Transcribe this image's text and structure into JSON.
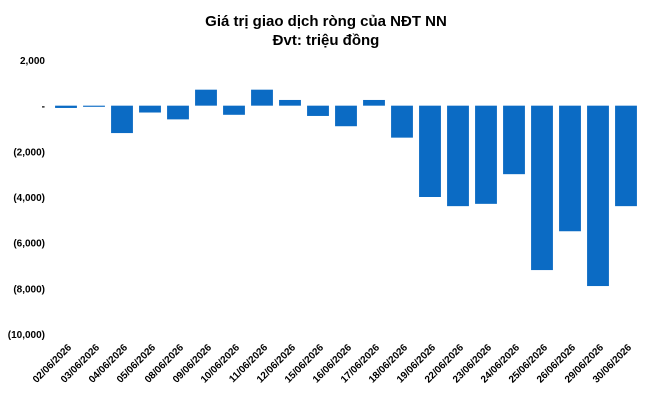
{
  "chart_data": {
    "type": "bar",
    "title": "Giá trị giao dịch ròng của NĐT NN",
    "subtitle": "Đvt: triệu đồng",
    "xlabel": "",
    "ylabel": "",
    "ylim": [
      -10000,
      2000
    ],
    "yticks": [
      2000,
      0,
      -2000,
      -4000,
      -6000,
      -8000,
      -10000
    ],
    "ytick_labels": [
      "2,000",
      "-",
      "(2,000)",
      "(4,000)",
      "(6,000)",
      "(8,000)",
      "(10,000)"
    ],
    "grid": false,
    "bar_color": "#0B6BC4",
    "categories": [
      "02/06/2026",
      "03/06/2026",
      "04/06/2026",
      "05/06/2026",
      "08/06/2026",
      "09/06/2026",
      "10/06/2026",
      "11/06/2026",
      "12/06/2026",
      "15/06/2026",
      "16/06/2026",
      "17/06/2026",
      "18/06/2026",
      "19/06/2026",
      "22/06/2026",
      "23/06/2026",
      "24/06/2026",
      "25/06/2026",
      "26/06/2026",
      "29/06/2026",
      "30/06/2026"
    ],
    "values": [
      -100,
      -50,
      -1200,
      -300,
      -600,
      700,
      -400,
      700,
      250,
      -450,
      -900,
      250,
      -1400,
      -4000,
      -4400,
      -4300,
      -3000,
      -7200,
      -5500,
      -7900,
      -4400
    ]
  }
}
